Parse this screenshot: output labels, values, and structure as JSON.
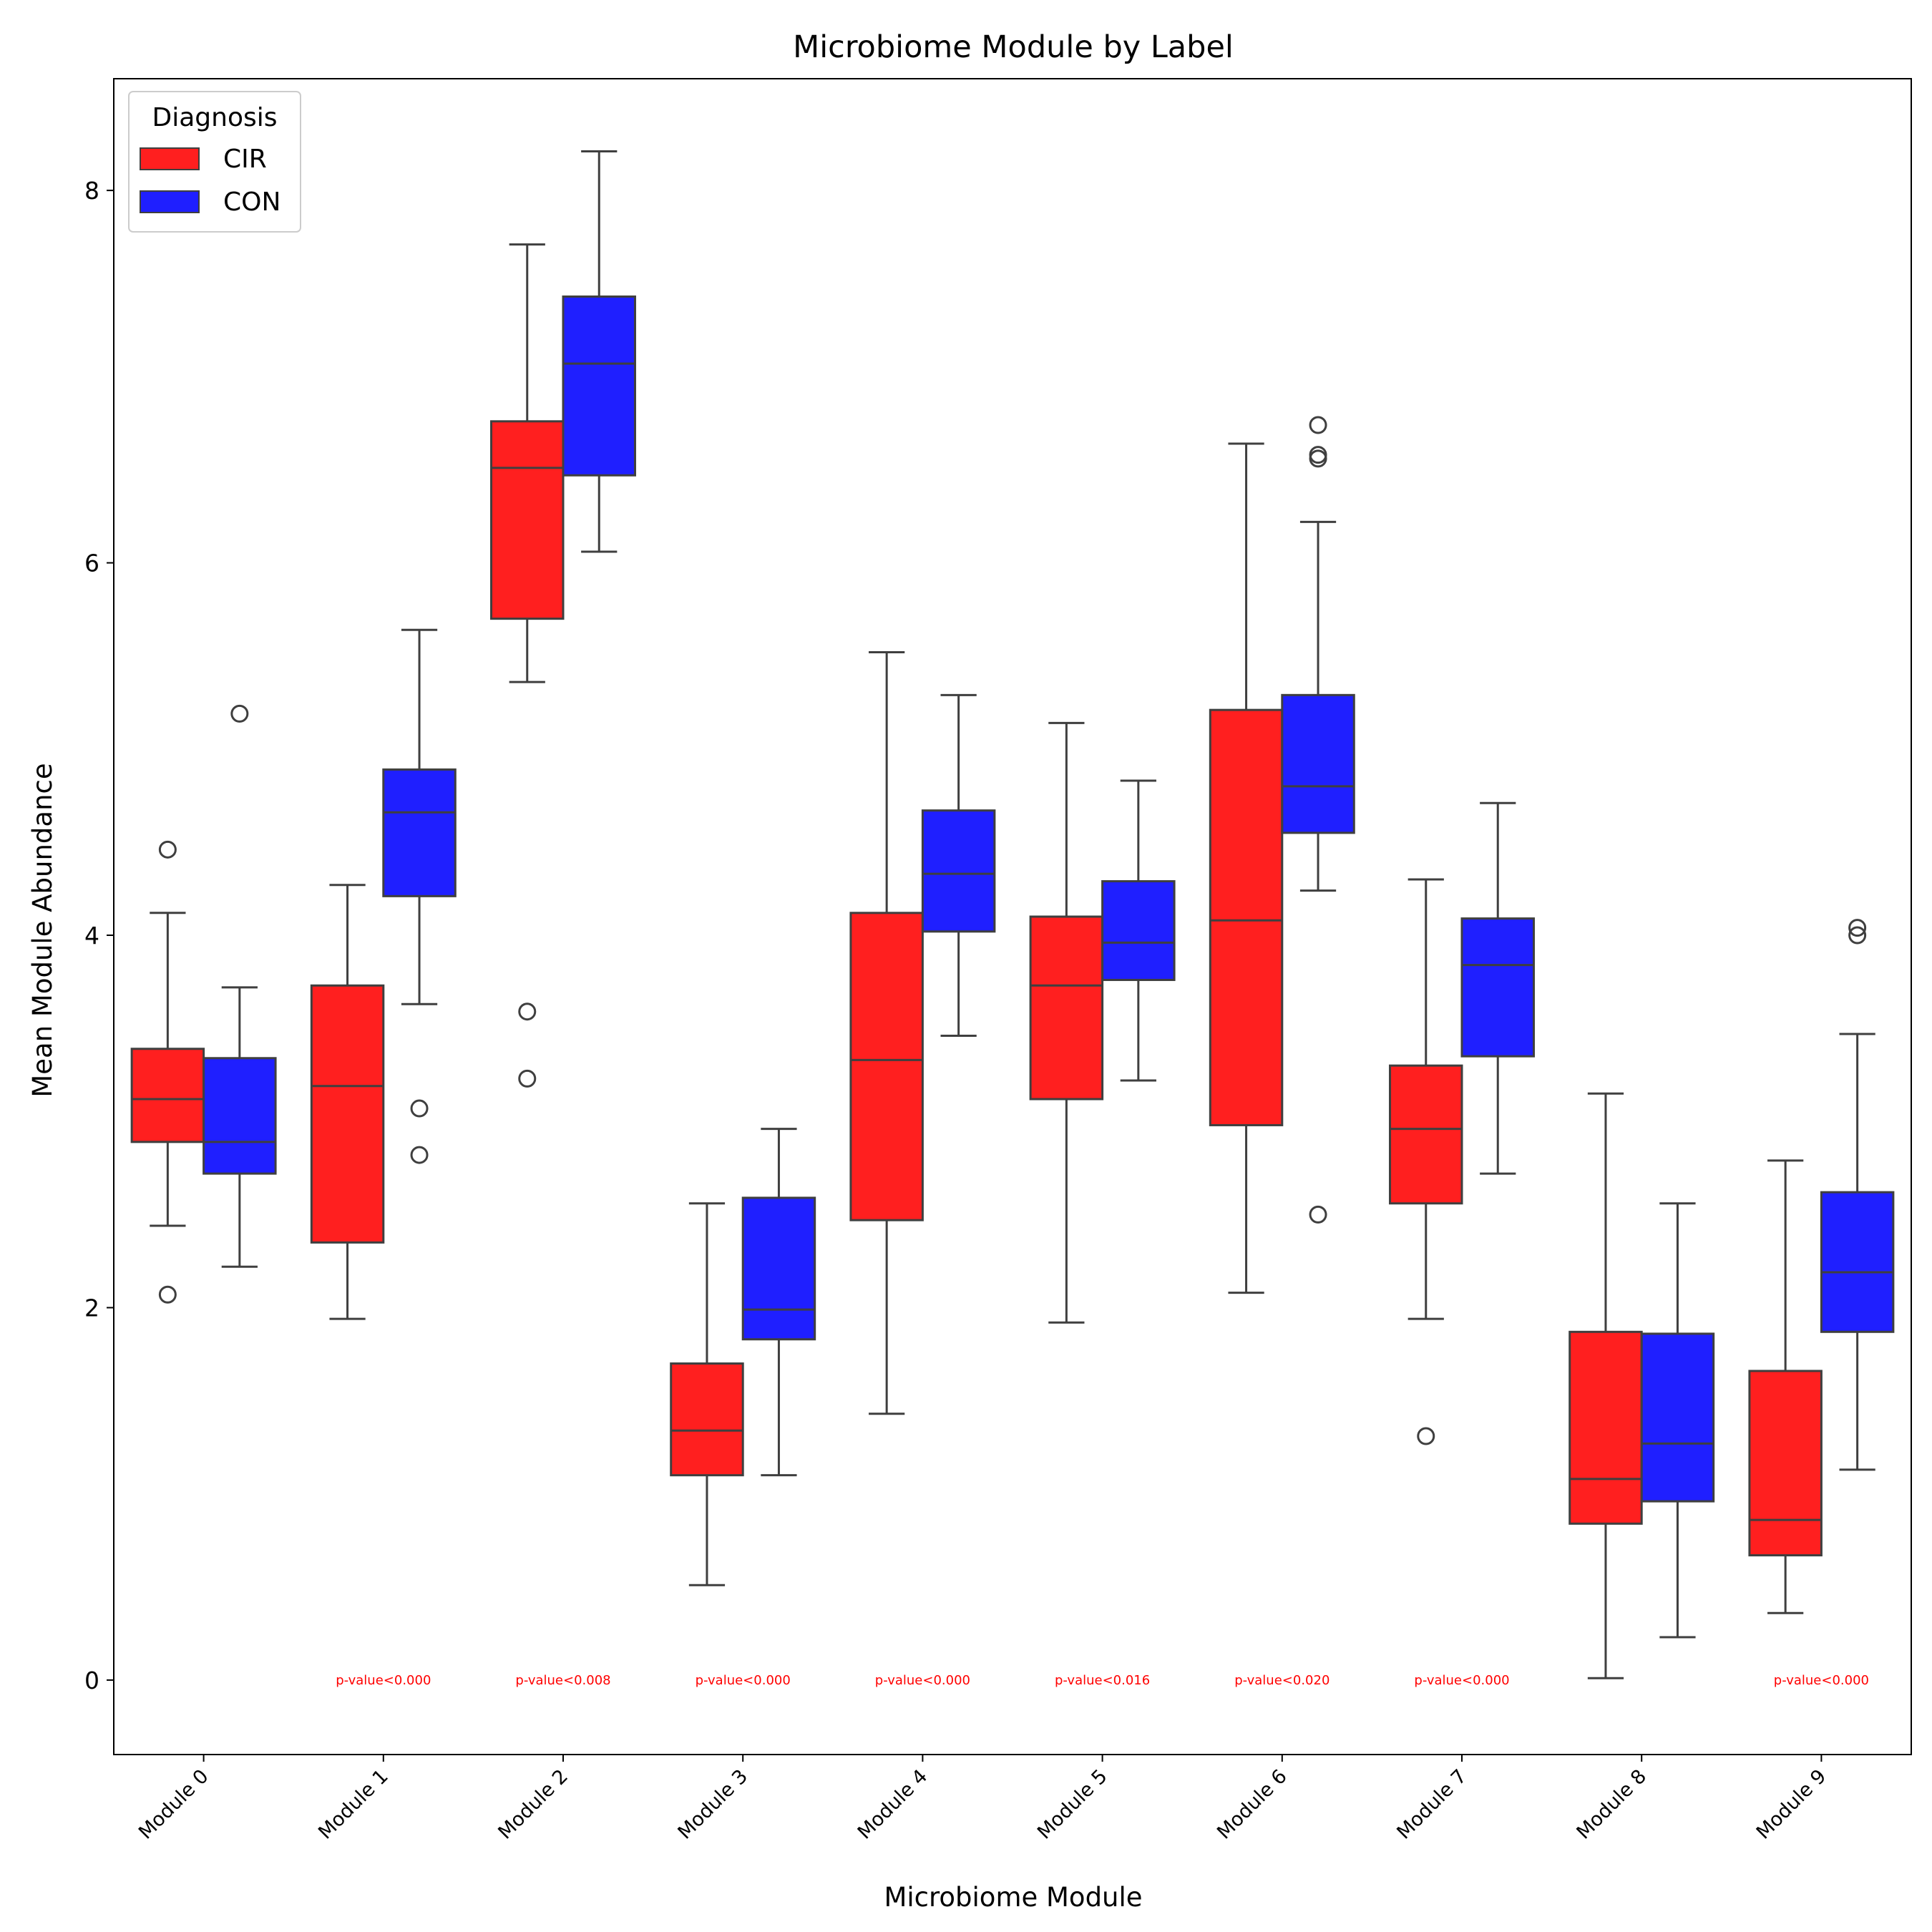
{
  "chart_data": {
    "type": "box",
    "title": "Microbiome Module by Label",
    "xlabel": "Microbiome Module",
    "ylabel": "Mean Module Abundance",
    "ylim": [
      -0.4,
      8.6
    ],
    "yticks": [
      0,
      2,
      4,
      6,
      8
    ],
    "categories": [
      "Module 0",
      "Module 1",
      "Module 2",
      "Module 3",
      "Module 4",
      "Module 5",
      "Module 6",
      "Module 7",
      "Module 8",
      "Module 9"
    ],
    "legend": {
      "title": "Diagnosis",
      "position": "top-left"
    },
    "annotation_y": 0,
    "series": [
      {
        "name": "CIR",
        "color": "#ff0000",
        "boxes": [
          {
            "whislo": 2.44,
            "q1": 2.89,
            "med": 3.12,
            "q3": 3.39,
            "whishi": 4.12,
            "fliers": [
              4.46,
              2.07
            ]
          },
          {
            "whislo": 1.94,
            "q1": 2.35,
            "med": 3.19,
            "q3": 3.73,
            "whishi": 4.27,
            "fliers": []
          },
          {
            "whislo": 5.36,
            "q1": 5.7,
            "med": 6.51,
            "q3": 6.76,
            "whishi": 7.71,
            "fliers": [
              3.59,
              3.23
            ]
          },
          {
            "whislo": 0.51,
            "q1": 1.1,
            "med": 1.34,
            "q3": 1.7,
            "whishi": 2.56,
            "fliers": []
          },
          {
            "whislo": 1.43,
            "q1": 2.47,
            "med": 3.33,
            "q3": 4.12,
            "whishi": 5.52,
            "fliers": []
          },
          {
            "whislo": 1.92,
            "q1": 3.12,
            "med": 3.73,
            "q3": 4.1,
            "whishi": 5.14,
            "fliers": []
          },
          {
            "whislo": 2.08,
            "q1": 2.98,
            "med": 4.08,
            "q3": 5.21,
            "whishi": 6.64,
            "fliers": []
          },
          {
            "whislo": 1.94,
            "q1": 2.56,
            "med": 2.96,
            "q3": 3.3,
            "whishi": 4.3,
            "fliers": [
              1.31
            ]
          },
          {
            "whislo": 0.01,
            "q1": 0.84,
            "med": 1.08,
            "q3": 1.87,
            "whishi": 3.15,
            "fliers": []
          },
          {
            "whislo": 0.36,
            "q1": 0.67,
            "med": 0.86,
            "q3": 1.66,
            "whishi": 2.79,
            "fliers": []
          }
        ]
      },
      {
        "name": "CON",
        "color": "#0000ff",
        "boxes": [
          {
            "whislo": 2.22,
            "q1": 2.72,
            "med": 2.89,
            "q3": 3.34,
            "whishi": 3.72,
            "fliers": [
              5.19
            ]
          },
          {
            "whislo": 3.63,
            "q1": 4.21,
            "med": 4.66,
            "q3": 4.89,
            "whishi": 5.64,
            "fliers": [
              3.07,
              2.82
            ]
          },
          {
            "whislo": 6.06,
            "q1": 6.47,
            "med": 7.07,
            "q3": 7.43,
            "whishi": 8.21,
            "fliers": []
          },
          {
            "whislo": 1.1,
            "q1": 1.83,
            "med": 1.99,
            "q3": 2.59,
            "whishi": 2.96,
            "fliers": []
          },
          {
            "whislo": 3.46,
            "q1": 4.02,
            "med": 4.33,
            "q3": 4.67,
            "whishi": 5.29,
            "fliers": []
          },
          {
            "whislo": 3.22,
            "q1": 3.76,
            "med": 3.96,
            "q3": 4.29,
            "whishi": 4.83,
            "fliers": []
          },
          {
            "whislo": 4.24,
            "q1": 4.55,
            "med": 4.8,
            "q3": 5.29,
            "whishi": 6.22,
            "fliers": [
              6.74,
              6.56,
              6.58,
              2.5
            ]
          },
          {
            "whislo": 2.72,
            "q1": 3.35,
            "med": 3.84,
            "q3": 4.09,
            "whishi": 4.71,
            "fliers": []
          },
          {
            "whislo": 0.23,
            "q1": 0.96,
            "med": 1.27,
            "q3": 1.86,
            "whishi": 2.56,
            "fliers": []
          },
          {
            "whislo": 1.13,
            "q1": 1.87,
            "med": 2.19,
            "q3": 2.62,
            "whishi": 3.47,
            "fliers": [
              4.04,
              4.0
            ]
          }
        ]
      }
    ],
    "annotations": [
      {
        "category": "Module 1",
        "text": "p-value<0.000"
      },
      {
        "category": "Module 2",
        "text": "p-value<0.008"
      },
      {
        "category": "Module 3",
        "text": "p-value<0.000"
      },
      {
        "category": "Module 4",
        "text": "p-value<0.000"
      },
      {
        "category": "Module 5",
        "text": "p-value<0.016"
      },
      {
        "category": "Module 6",
        "text": "p-value<0.020"
      },
      {
        "category": "Module 7",
        "text": "p-value<0.000"
      },
      {
        "category": "Module 9",
        "text": "p-value<0.000"
      }
    ]
  }
}
